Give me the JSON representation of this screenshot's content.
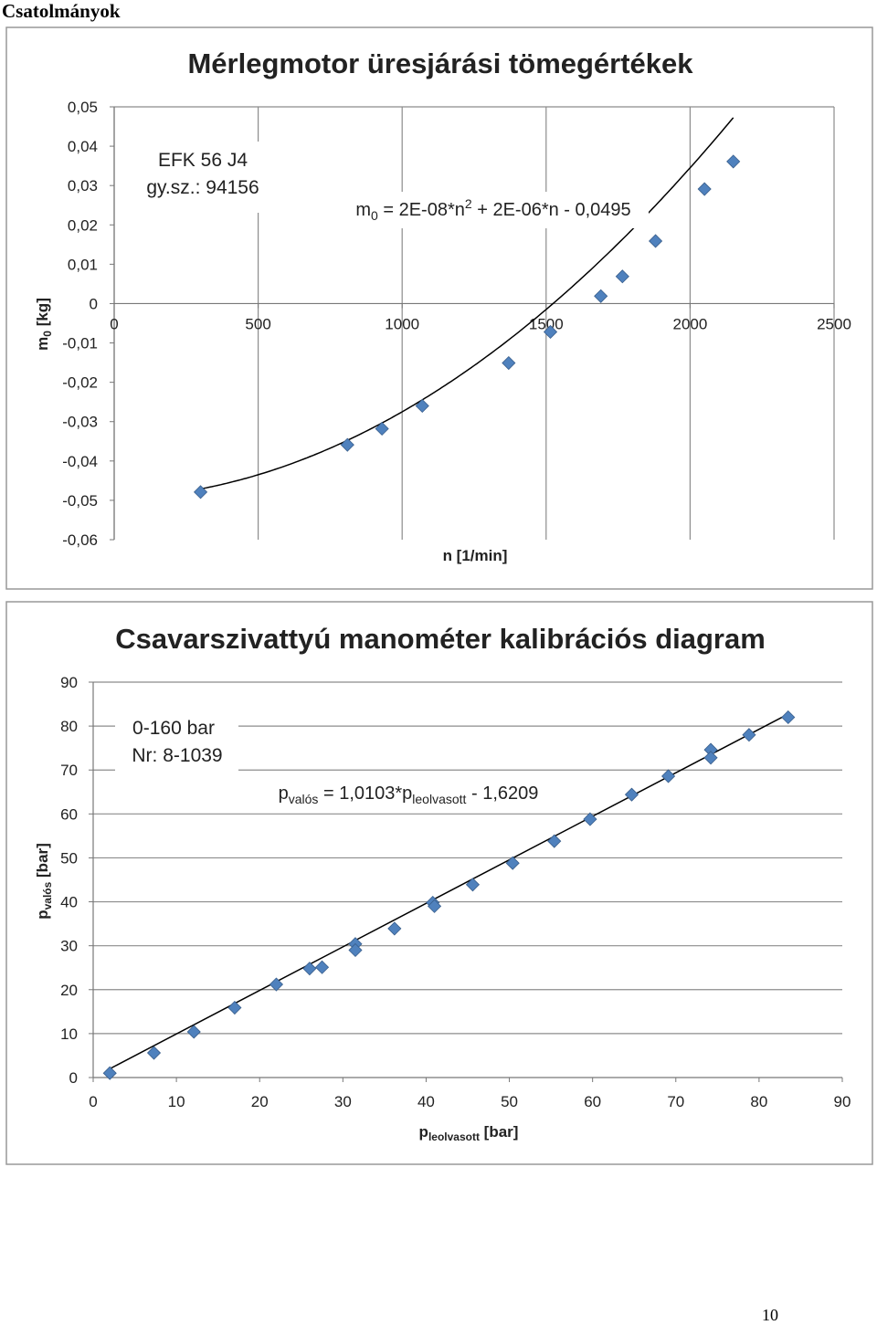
{
  "page": {
    "heading": "Csatolmányok",
    "number": "10"
  },
  "chart_data": [
    {
      "type": "scatter",
      "title": "Mérlegmotor üresjárási tömegértékek",
      "ylabel": {
        "base": "m",
        "sub": "0",
        "rest": " [kg]"
      },
      "xlabel": "n [1/min]",
      "xlim": [
        0,
        2500
      ],
      "ylim": [
        -0.06,
        0.05
      ],
      "x_ticks": [
        "0",
        "500",
        "1000",
        "1500",
        "2000",
        "2500"
      ],
      "y_ticks": [
        "0,05",
        "0,04",
        "0,03",
        "0,02",
        "0,01",
        "0",
        "-0,01",
        "-0,02",
        "-0,03",
        "-0,04",
        "-0,05",
        "-0,06"
      ],
      "grid": "vertical",
      "annotation": [
        "EFK 56 J4",
        "gy.sz.: 94156"
      ],
      "equation": {
        "p1": "m",
        "p1sub": "0",
        "p2": " = 2E-08*n",
        "p2sup": "2",
        "p3": " + 2E-06*n - 0,0495"
      },
      "trendline": {
        "type": "polynomial",
        "coef": [
          2e-08,
          2e-06,
          -0.0495
        ]
      },
      "series": [
        {
          "x": [
            300,
            810,
            930,
            1070,
            1370,
            1515,
            1690,
            1765,
            1880,
            2050,
            2150
          ],
          "y": [
            -0.0479,
            -0.0359,
            -0.0318,
            -0.026,
            -0.0151,
            -0.0072,
            0.0019,
            0.0069,
            0.0159,
            0.0291,
            0.0361
          ]
        }
      ],
      "marker_color": "#4f81bd"
    },
    {
      "type": "scatter",
      "title": "Csavarszivattyú manométer kalibrációs diagram",
      "ylabel": {
        "base": "p",
        "sub": "valós",
        "rest": " [bar]"
      },
      "xlabel": {
        "base": "p",
        "sub": "leolvasott",
        "rest": " [bar]"
      },
      "xlim": [
        0,
        90
      ],
      "ylim": [
        0,
        90
      ],
      "x_ticks": [
        "0",
        "10",
        "20",
        "30",
        "40",
        "50",
        "60",
        "70",
        "80",
        "90"
      ],
      "y_ticks": [
        "90",
        "80",
        "70",
        "60",
        "50",
        "40",
        "30",
        "20",
        "10",
        "0"
      ],
      "grid": "horizontal",
      "annotation": [
        "0-160 bar",
        "Nr: 8-1039"
      ],
      "equation": {
        "p1": "p",
        "p1sub": "valós",
        "p2": " = 1,0103*p",
        "p2sub": "leolvasott",
        "p3": " - 1,6209"
      },
      "trendline": {
        "type": "linear",
        "slope": 1.0103,
        "intercept": -1.6209
      },
      "series": [
        {
          "x": [
            2,
            7.3,
            12.1,
            17,
            22,
            26,
            27.5,
            31.5,
            31.5,
            36.2,
            40.8,
            41,
            45.6,
            50.4,
            55.4,
            59.7,
            64.7,
            69.1,
            74.2,
            74.2,
            78.8,
            83.5
          ],
          "y": [
            1.0,
            5.6,
            10.4,
            15.9,
            21.2,
            24.8,
            25.1,
            30.4,
            29.0,
            33.9,
            39.8,
            39.0,
            43.9,
            48.8,
            53.8,
            58.8,
            64.4,
            68.6,
            74.6,
            72.8,
            78.0,
            82.0
          ]
        }
      ],
      "marker_color": "#4f81bd"
    }
  ]
}
